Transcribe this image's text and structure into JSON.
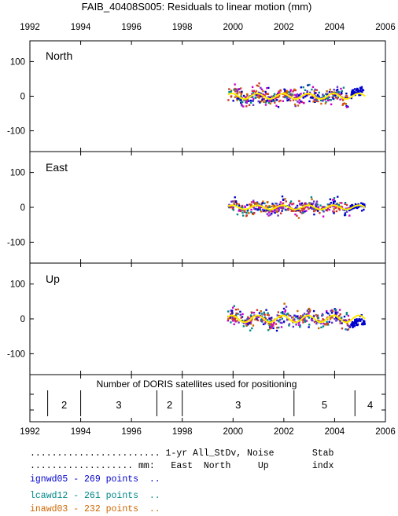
{
  "title": "FAIB_40408S005: Residuals to linear motion (mm)",
  "colors": {
    "series": [
      "#0000cc",
      "#008888",
      "#cc6600",
      "#cc00cc",
      "#6633cc",
      "#cc3333"
    ],
    "trend": "#ffee00"
  },
  "chart_data": [
    {
      "type": "scatter",
      "panel": "North",
      "xlim": [
        1992,
        2006
      ],
      "ylim": [
        -160,
        160
      ],
      "x_ticks": [
        "1992",
        "1994",
        "1996",
        "1998",
        "2000",
        "2002",
        "2004",
        "2006"
      ],
      "y_ticks": [
        "100",
        "0",
        "-100"
      ],
      "data_range_x": [
        1999.8,
        2005.2
      ],
      "spread": 22,
      "trend": {
        "amplitude": 8,
        "period_years": 1.0
      }
    },
    {
      "type": "scatter",
      "panel": "East",
      "xlim": [
        1992,
        2006
      ],
      "ylim": [
        -160,
        160
      ],
      "y_ticks": [
        "100",
        "0",
        "-100"
      ],
      "data_range_x": [
        1999.8,
        2005.2
      ],
      "spread": 18,
      "trend": {
        "amplitude": 6,
        "period_years": 1.0
      }
    },
    {
      "type": "scatter",
      "panel": "Up",
      "xlim": [
        1992,
        2006
      ],
      "ylim": [
        -160,
        160
      ],
      "y_ticks": [
        "100",
        "0",
        "-100"
      ],
      "data_range_x": [
        1999.8,
        2005.2
      ],
      "spread": 22,
      "trend": {
        "amplitude": 10,
        "period_years": 1.0
      }
    },
    {
      "type": "table",
      "panel": "satellites",
      "title": "Number of DORIS satellites used for positioning",
      "boundaries": [
        1992.7,
        1994.0,
        1997.0,
        1998.0,
        2002.4,
        2004.8
      ],
      "segments": [
        {
          "from": 1992.7,
          "to": 1994.0,
          "label": "2"
        },
        {
          "from": 1994.0,
          "to": 1997.0,
          "label": "3"
        },
        {
          "from": 1997.0,
          "to": 1998.0,
          "label": "2"
        },
        {
          "from": 1998.0,
          "to": 2002.4,
          "label": "3"
        },
        {
          "from": 2002.4,
          "to": 2004.8,
          "label": "5"
        },
        {
          "from": 2004.8,
          "to": 2006.0,
          "label": "4"
        }
      ],
      "x_ticks": [
        "1992",
        "1994",
        "1996",
        "1998",
        "2000",
        "2002",
        "2004",
        "2006"
      ]
    }
  ],
  "stats": {
    "header1": "........................ 1-yr All_StDv, Noise       Stab",
    "header2": "................... mm:   East  North     Up        indx",
    "rows": [
      {
        "text": "ignwd05 - 269 points  ..",
        "color": "#0000cc"
      },
      {
        "text": "lcawd12 - 261 points  ..",
        "color": "#008888"
      },
      {
        "text": "inawd03 - 232 points  ..",
        "color": "#cc6600"
      }
    ]
  }
}
